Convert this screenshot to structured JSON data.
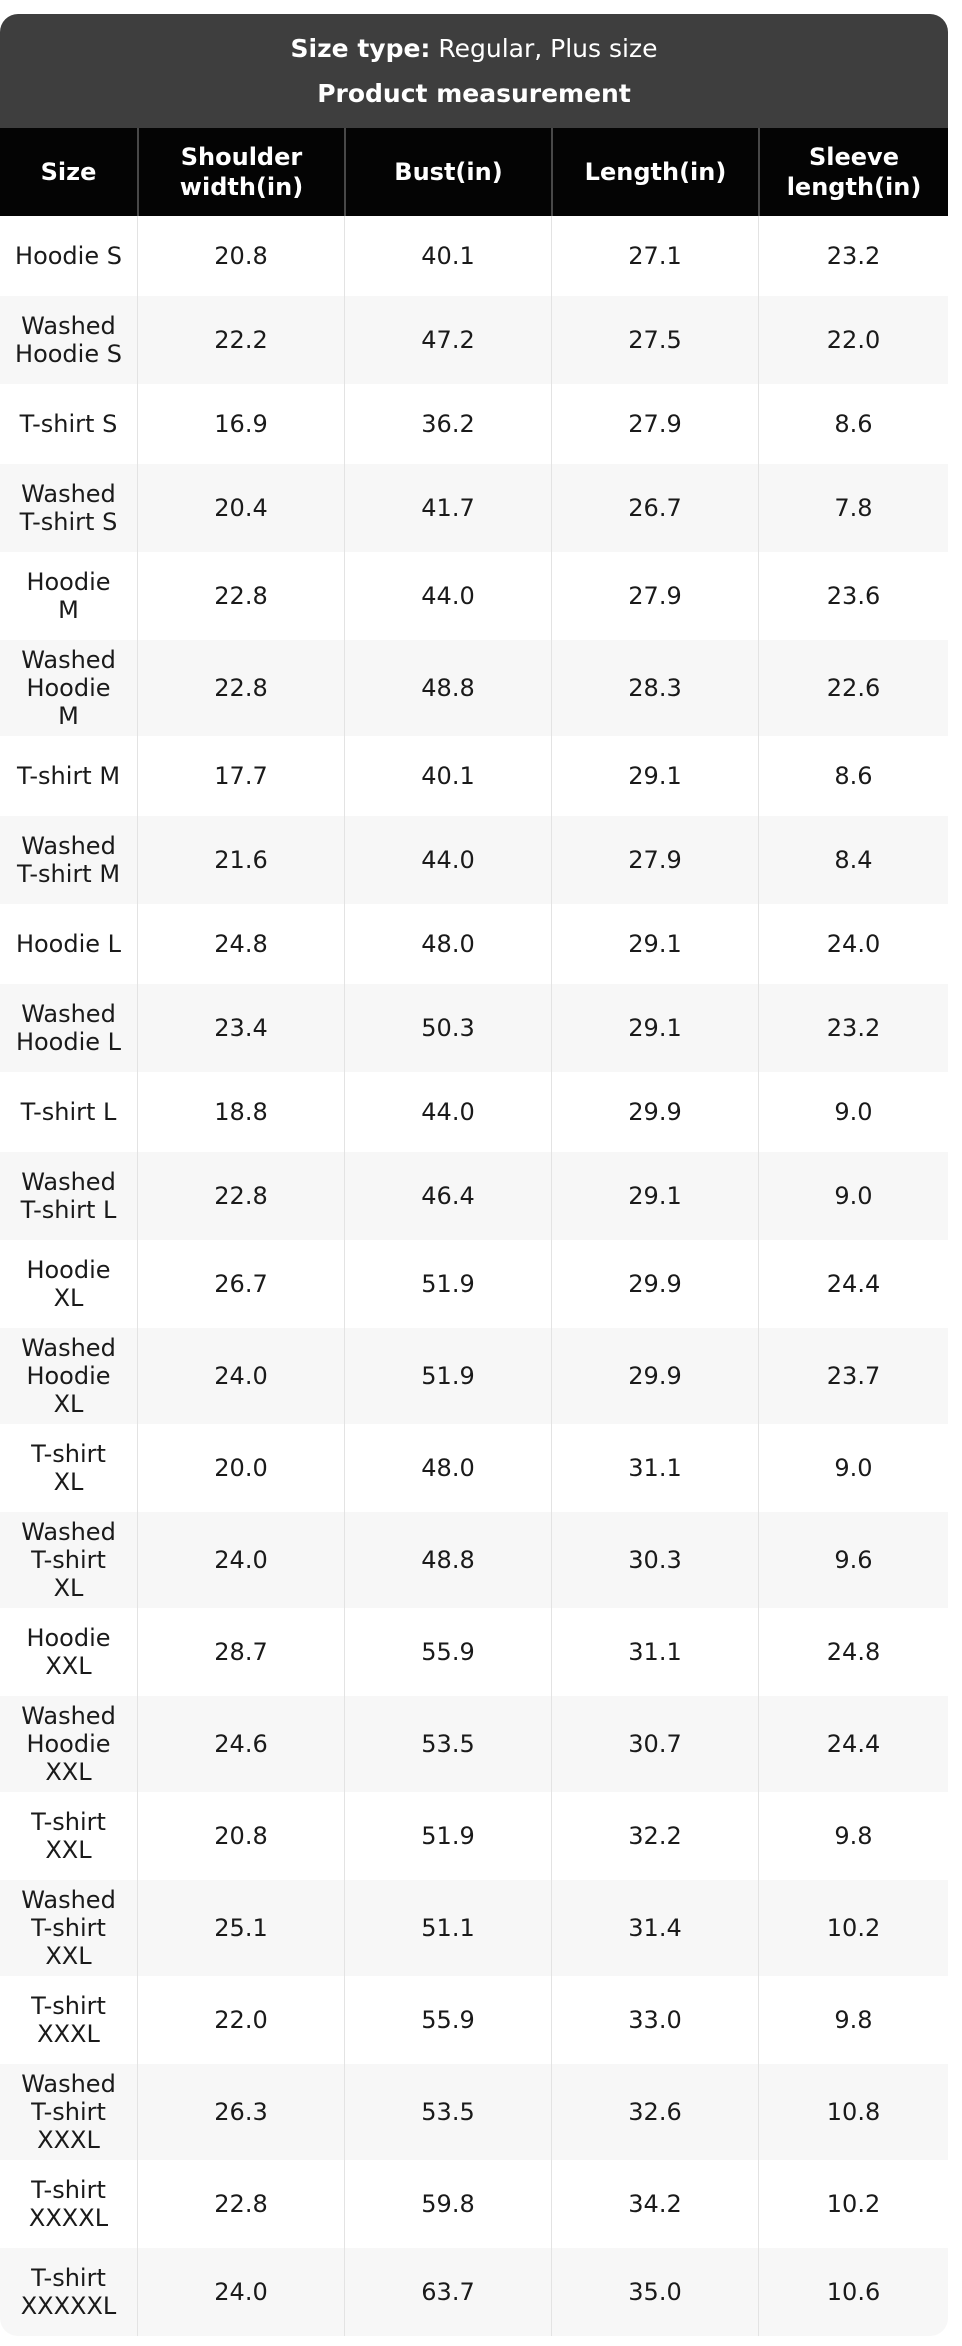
{
  "banner": {
    "size_type_label": "Size type:",
    "size_type_value": "Regular, Plus size",
    "title": "Product measurement"
  },
  "table": {
    "columns": [
      "Size",
      "Shoulder\nwidth(in)",
      "Bust(in)",
      "Length(in)",
      "Sleeve\nlength(in)"
    ],
    "rows": [
      {
        "size": "Hoodie S",
        "shoulder": "20.8",
        "bust": "40.1",
        "length": "27.1",
        "sleeve": "23.2"
      },
      {
        "size": "Washed\nHoodie S",
        "shoulder": "22.2",
        "bust": "47.2",
        "length": "27.5",
        "sleeve": "22.0"
      },
      {
        "size": "T-shirt S",
        "shoulder": "16.9",
        "bust": "36.2",
        "length": "27.9",
        "sleeve": "8.6"
      },
      {
        "size": "Washed\nT-shirt S",
        "shoulder": "20.4",
        "bust": "41.7",
        "length": "26.7",
        "sleeve": "7.8"
      },
      {
        "size": "Hoodie\nM",
        "shoulder": "22.8",
        "bust": "44.0",
        "length": "27.9",
        "sleeve": "23.6"
      },
      {
        "size": "Washed\nHoodie\nM",
        "shoulder": "22.8",
        "bust": "48.8",
        "length": "28.3",
        "sleeve": "22.6"
      },
      {
        "size": "T-shirt M",
        "shoulder": "17.7",
        "bust": "40.1",
        "length": "29.1",
        "sleeve": "8.6"
      },
      {
        "size": "Washed\nT-shirt M",
        "shoulder": "21.6",
        "bust": "44.0",
        "length": "27.9",
        "sleeve": "8.4"
      },
      {
        "size": "Hoodie L",
        "shoulder": "24.8",
        "bust": "48.0",
        "length": "29.1",
        "sleeve": "24.0"
      },
      {
        "size": "Washed\nHoodie L",
        "shoulder": "23.4",
        "bust": "50.3",
        "length": "29.1",
        "sleeve": "23.2"
      },
      {
        "size": "T-shirt L",
        "shoulder": "18.8",
        "bust": "44.0",
        "length": "29.9",
        "sleeve": "9.0"
      },
      {
        "size": "Washed\nT-shirt L",
        "shoulder": "22.8",
        "bust": "46.4",
        "length": "29.1",
        "sleeve": "9.0"
      },
      {
        "size": "Hoodie\nXL",
        "shoulder": "26.7",
        "bust": "51.9",
        "length": "29.9",
        "sleeve": "24.4"
      },
      {
        "size": "Washed\nHoodie\nXL",
        "shoulder": "24.0",
        "bust": "51.9",
        "length": "29.9",
        "sleeve": "23.7"
      },
      {
        "size": "T-shirt\nXL",
        "shoulder": "20.0",
        "bust": "48.0",
        "length": "31.1",
        "sleeve": "9.0"
      },
      {
        "size": "Washed\nT-shirt\nXL",
        "shoulder": "24.0",
        "bust": "48.8",
        "length": "30.3",
        "sleeve": "9.6"
      },
      {
        "size": "Hoodie\nXXL",
        "shoulder": "28.7",
        "bust": "55.9",
        "length": "31.1",
        "sleeve": "24.8"
      },
      {
        "size": "Washed\nHoodie\nXXL",
        "shoulder": "24.6",
        "bust": "53.5",
        "length": "30.7",
        "sleeve": "24.4"
      },
      {
        "size": "T-shirt\nXXL",
        "shoulder": "20.8",
        "bust": "51.9",
        "length": "32.2",
        "sleeve": "9.8"
      },
      {
        "size": "Washed\nT-shirt\nXXL",
        "shoulder": "25.1",
        "bust": "51.1",
        "length": "31.4",
        "sleeve": "10.2"
      },
      {
        "size": "T-shirt\nXXXL",
        "shoulder": "22.0",
        "bust": "55.9",
        "length": "33.0",
        "sleeve": "9.8"
      },
      {
        "size": "Washed\nT-shirt\nXXXL",
        "shoulder": "26.3",
        "bust": "53.5",
        "length": "32.6",
        "sleeve": "10.8"
      },
      {
        "size": "T-shirt\nXXXXL",
        "shoulder": "22.8",
        "bust": "59.8",
        "length": "34.2",
        "sleeve": "10.2"
      },
      {
        "size": "T-shirt\nXXXXXL",
        "shoulder": "24.0",
        "bust": "63.7",
        "length": "35.0",
        "sleeve": "10.6"
      }
    ]
  },
  "colors": {
    "banner_bg": "#3e3e3e",
    "header_bg": "#040404",
    "header_text": "#ffffff",
    "row_alt_bg": "#f7f7f7",
    "row_bg": "#ffffff",
    "text": "#1a1a1a"
  }
}
